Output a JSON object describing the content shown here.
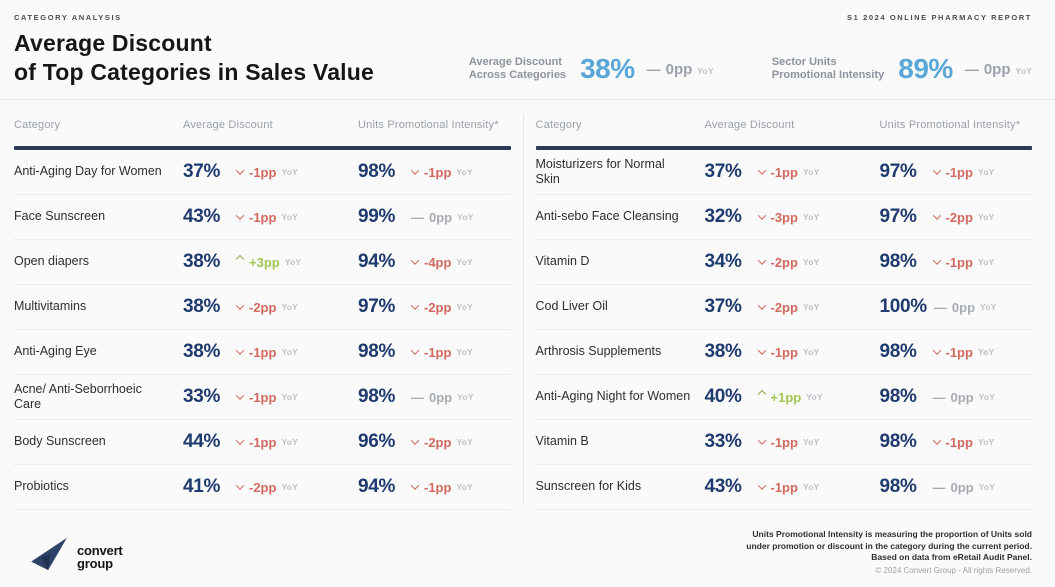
{
  "colors": {
    "accent_blue": "#58a7d8",
    "value_navy": "#1e3a6e",
    "negative_red": "#d2695e",
    "positive_green": "#a4c553",
    "positive_green_chevron": "#8aad45",
    "header_bar_navy": "#2a3a57",
    "background": "#fafafa"
  },
  "labels": {
    "yoy": "YoY"
  },
  "header": {
    "eyebrow_left": "CATEGORY ANALYSIS",
    "eyebrow_right": "S1 2024 ONLINE PHARMACY REPORT",
    "title_line1": "Average Discount",
    "title_line2": "of Top Categories in Sales Value",
    "kpis": [
      {
        "label_line1": "Average Discount",
        "label_line2": "Across Categories",
        "value": "38%",
        "delta": "0pp",
        "dir": "flat"
      },
      {
        "label_line1": "Sector Units",
        "label_line2": "Promotional Intensity",
        "value": "89%",
        "delta": "0pp",
        "dir": "flat"
      }
    ]
  },
  "table_headers": {
    "category": "Category",
    "discount": "Average Discount",
    "intensity": "Units Promotional Intensity*"
  },
  "tables": {
    "left": [
      {
        "category": "Anti-Aging Day for Women",
        "discount": {
          "value": "37%",
          "delta": "-1pp",
          "dir": "down"
        },
        "intensity": {
          "value": "98%",
          "delta": "-1pp",
          "dir": "down"
        }
      },
      {
        "category": "Face Sunscreen",
        "discount": {
          "value": "43%",
          "delta": "-1pp",
          "dir": "down"
        },
        "intensity": {
          "value": "99%",
          "delta": "0pp",
          "dir": "flat"
        }
      },
      {
        "category": "Open diapers",
        "discount": {
          "value": "38%",
          "delta": "+3pp",
          "dir": "up"
        },
        "intensity": {
          "value": "94%",
          "delta": "-4pp",
          "dir": "down"
        }
      },
      {
        "category": "Multivitamins",
        "discount": {
          "value": "38%",
          "delta": "-2pp",
          "dir": "down"
        },
        "intensity": {
          "value": "97%",
          "delta": "-2pp",
          "dir": "down"
        }
      },
      {
        "category": "Anti-Aging Eye",
        "discount": {
          "value": "38%",
          "delta": "-1pp",
          "dir": "down"
        },
        "intensity": {
          "value": "98%",
          "delta": "-1pp",
          "dir": "down"
        }
      },
      {
        "category": "Acne/ Anti-Seborrhoeic Care",
        "discount": {
          "value": "33%",
          "delta": "-1pp",
          "dir": "down"
        },
        "intensity": {
          "value": "98%",
          "delta": "0pp",
          "dir": "flat"
        }
      },
      {
        "category": "Body Sunscreen",
        "discount": {
          "value": "44%",
          "delta": "-1pp",
          "dir": "down"
        },
        "intensity": {
          "value": "96%",
          "delta": "-2pp",
          "dir": "down"
        }
      },
      {
        "category": "Probiotics",
        "discount": {
          "value": "41%",
          "delta": "-2pp",
          "dir": "down"
        },
        "intensity": {
          "value": "94%",
          "delta": "-1pp",
          "dir": "down"
        }
      }
    ],
    "right": [
      {
        "category": "Moisturizers for Normal Skin",
        "discount": {
          "value": "37%",
          "delta": "-1pp",
          "dir": "down"
        },
        "intensity": {
          "value": "97%",
          "delta": "-1pp",
          "dir": "down"
        }
      },
      {
        "category": "Anti-sebo Face Cleansing",
        "discount": {
          "value": "32%",
          "delta": "-3pp",
          "dir": "down"
        },
        "intensity": {
          "value": "97%",
          "delta": "-2pp",
          "dir": "down"
        }
      },
      {
        "category": "Vitamin D",
        "discount": {
          "value": "34%",
          "delta": "-2pp",
          "dir": "down"
        },
        "intensity": {
          "value": "98%",
          "delta": "-1pp",
          "dir": "down"
        }
      },
      {
        "category": "Cod Liver Oil",
        "discount": {
          "value": "37%",
          "delta": "-2pp",
          "dir": "down"
        },
        "intensity": {
          "value": "100%",
          "delta": "0pp",
          "dir": "flat"
        }
      },
      {
        "category": "Arthrosis Supplements",
        "discount": {
          "value": "38%",
          "delta": "-1pp",
          "dir": "down"
        },
        "intensity": {
          "value": "98%",
          "delta": "-1pp",
          "dir": "down"
        }
      },
      {
        "category": "Anti-Aging Night for Women",
        "discount": {
          "value": "40%",
          "delta": "+1pp",
          "dir": "up"
        },
        "intensity": {
          "value": "98%",
          "delta": "0pp",
          "dir": "flat"
        }
      },
      {
        "category": "Vitamin B",
        "discount": {
          "value": "33%",
          "delta": "-1pp",
          "dir": "down"
        },
        "intensity": {
          "value": "98%",
          "delta": "-1pp",
          "dir": "down"
        }
      },
      {
        "category": "Sunscreen for Kids",
        "discount": {
          "value": "43%",
          "delta": "-1pp",
          "dir": "down"
        },
        "intensity": {
          "value": "98%",
          "delta": "0pp",
          "dir": "flat"
        }
      }
    ]
  },
  "footer": {
    "logo_line1": "convert",
    "logo_line2": "group",
    "notes": [
      "Units Promotional Intensity is measuring the proportion of Units sold",
      "under promotion or discount in the category during the current period.",
      "Based on data from eRetail Audit Panel."
    ],
    "copyright": "© 2024 Convert Group - All rights Reserved."
  }
}
